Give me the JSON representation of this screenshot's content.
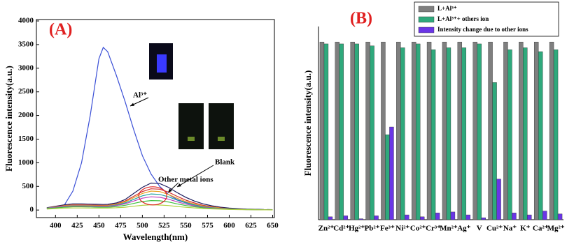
{
  "chart_data": [
    {
      "type": "line",
      "panel_label": "(A)",
      "x_label": "Wavelength(nm)",
      "y_label": "Fluorescence intensity(a.u.)",
      "annotations": [
        "Al³⁺",
        "Other metal ions",
        "Blank"
      ],
      "x": [
        390,
        400,
        410,
        420,
        430,
        440,
        450,
        455,
        460,
        470,
        480,
        490,
        500,
        510,
        520,
        530,
        540,
        550,
        560,
        570,
        580,
        590,
        600,
        610,
        620,
        630,
        640,
        650
      ],
      "series": [
        {
          "color": "#3a4fd6",
          "values": [
            40,
            60,
            100,
            400,
            1000,
            2000,
            3200,
            3440,
            3350,
            2850,
            2300,
            1700,
            1150,
            760,
            500,
            330,
            220,
            160,
            110,
            80,
            60,
            45,
            35,
            25,
            20,
            15,
            10,
            8
          ]
        },
        {
          "color": "#1c1c5e",
          "values": [
            50,
            80,
            110,
            130,
            130,
            125,
            120,
            118,
            120,
            150,
            220,
            350,
            480,
            570,
            560,
            480,
            370,
            270,
            190,
            130,
            90,
            60,
            40,
            30,
            20,
            15,
            10,
            8
          ]
        },
        {
          "color": "#d03030",
          "values": [
            45,
            70,
            95,
            110,
            110,
            105,
            100,
            100,
            100,
            130,
            190,
            290,
            390,
            450,
            440,
            380,
            290,
            210,
            150,
            100,
            70,
            45,
            30,
            22,
            15,
            10,
            8,
            6
          ]
        },
        {
          "color": "#e8a020",
          "values": [
            40,
            65,
            90,
            100,
            100,
            95,
            90,
            90,
            92,
            120,
            170,
            260,
            350,
            400,
            390,
            330,
            250,
            180,
            125,
            85,
            60,
            40,
            28,
            20,
            14,
            10,
            7,
            5
          ]
        },
        {
          "color": "#20a0a0",
          "values": [
            40,
            60,
            80,
            90,
            90,
            85,
            80,
            80,
            82,
            105,
            150,
            225,
            300,
            340,
            330,
            280,
            210,
            150,
            105,
            70,
            50,
            35,
            25,
            18,
            12,
            9,
            6,
            5
          ]
        },
        {
          "color": "#c040c0",
          "values": [
            35,
            55,
            75,
            85,
            85,
            80,
            75,
            75,
            76,
            95,
            130,
            190,
            250,
            280,
            270,
            230,
            175,
            125,
            90,
            60,
            42,
            30,
            20,
            15,
            10,
            8,
            6,
            4
          ]
        },
        {
          "color": "#40c040",
          "values": [
            30,
            45,
            60,
            70,
            70,
            65,
            60,
            60,
            60,
            75,
            100,
            140,
            180,
            200,
            195,
            170,
            130,
            95,
            70,
            48,
            35,
            25,
            17,
            12,
            9,
            7,
            5,
            4
          ]
        },
        {
          "color": "#b0d040",
          "values": [
            20,
            30,
            40,
            45,
            45,
            42,
            40,
            40,
            40,
            48,
            60,
            80,
            100,
            110,
            105,
            95,
            75,
            58,
            45,
            32,
            24,
            18,
            12,
            9,
            7,
            5,
            4,
            3
          ]
        }
      ],
      "xlim": [
        378,
        652
      ],
      "xticks": [
        400,
        425,
        450,
        475,
        500,
        525,
        550,
        575,
        600,
        625,
        650
      ],
      "ylim": [
        -160,
        4030
      ],
      "yticks": [
        0,
        500,
        1000,
        1500,
        2000,
        2500,
        3000,
        3500,
        4000
      ]
    },
    {
      "type": "bar",
      "panel_label": "(B)",
      "y_label": "Fluorescence intensity(a.u.)",
      "categories": [
        "Zn²⁺",
        "Cd²⁺",
        "Hg²⁺",
        "Pb²⁺",
        "Fe³⁺",
        "Ni²⁺",
        "Co²⁺",
        "Cr³⁺",
        "Mn²⁺",
        "Ag⁺",
        "V",
        "Cu²⁺",
        "Na⁺",
        "K⁺",
        "Ca²⁺",
        "Mg²⁺"
      ],
      "series": [
        {
          "name": "L+Al³⁺",
          "color": "#7f7f7f",
          "values": [
            92,
            92,
            92,
            92,
            92,
            92,
            92,
            92,
            92,
            92,
            92,
            92,
            92,
            92,
            92,
            92
          ]
        },
        {
          "name": "L+Al³⁺+ others ion",
          "color": "#2fa97c",
          "values": [
            91,
            91,
            91,
            90,
            44,
            89,
            91,
            88,
            89,
            89,
            91,
            71,
            88,
            89,
            87,
            88
          ]
        },
        {
          "name": "Intensity change due to other ions",
          "color": "#6a35e6",
          "values": [
            1.5,
            2,
            0.5,
            2,
            48,
            2.5,
            1.5,
            3.5,
            4,
            2.5,
            1,
            21,
            3.5,
            2.5,
            4.5,
            3
          ]
        }
      ],
      "ylim": [
        0,
        100
      ]
    }
  ]
}
